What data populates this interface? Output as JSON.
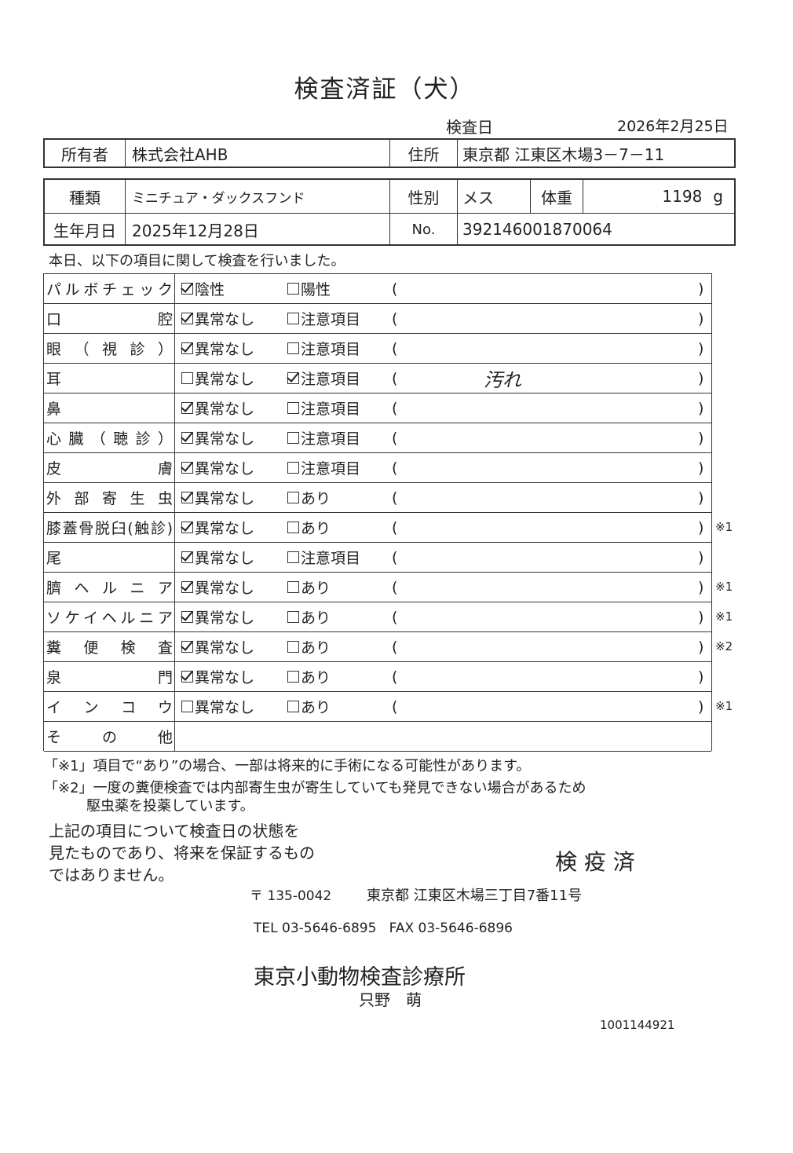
{
  "title": "検査済証（犬）",
  "inspection_date_label": "検査日",
  "inspection_date": "2026年2月25日",
  "owner": {
    "label": "所有者",
    "value": "株式会社AHB",
    "address_label": "住所",
    "address": "東京都 江東区木場3－7－11"
  },
  "pet": {
    "breed_label": "種類",
    "breed": "ミニチュア・ダックスフンド",
    "sex_label": "性別",
    "sex": "メス",
    "weight_label": "体重",
    "weight": "1198",
    "weight_unit": "g",
    "birth_label": "生年月日",
    "birth": "2025年12月28日",
    "no_label": "No.",
    "no": "392146001870064"
  },
  "intro": "本日、以下の項目に関して検査を行いました。",
  "rows": [
    {
      "label": "パルボチェック",
      "opt1": "陰性",
      "opt2": "陽性",
      "checked": 1,
      "note": "",
      "mark": ""
    },
    {
      "label": "口腔",
      "opt1": "異常なし",
      "opt2": "注意項目",
      "checked": 1,
      "note": "",
      "mark": ""
    },
    {
      "label": "眼（視診）",
      "opt1": "異常なし",
      "opt2": "注意項目",
      "checked": 1,
      "note": "",
      "mark": ""
    },
    {
      "label": "耳",
      "opt1": "異常なし",
      "opt2": "注意項目",
      "checked": 2,
      "note": "汚れ",
      "mark": ""
    },
    {
      "label": "鼻",
      "opt1": "異常なし",
      "opt2": "注意項目",
      "checked": 1,
      "note": "",
      "mark": ""
    },
    {
      "label": "心臓（聴診）",
      "opt1": "異常なし",
      "opt2": "注意項目",
      "checked": 1,
      "note": "",
      "mark": ""
    },
    {
      "label": "皮膚",
      "opt1": "異常なし",
      "opt2": "注意項目",
      "checked": 1,
      "note": "",
      "mark": ""
    },
    {
      "label": "外部寄生虫",
      "opt1": "異常なし",
      "opt2": "あり",
      "checked": 1,
      "note": "",
      "mark": ""
    },
    {
      "label": "膝蓋骨脱臼(触診)",
      "opt1": "異常なし",
      "opt2": "あり",
      "checked": 1,
      "note": "",
      "mark": "※1"
    },
    {
      "label": "尾",
      "opt1": "異常なし",
      "opt2": "注意項目",
      "checked": 1,
      "note": "",
      "mark": ""
    },
    {
      "label": "臍ヘルニア",
      "opt1": "異常なし",
      "opt2": "あり",
      "checked": 1,
      "note": "",
      "mark": "※1"
    },
    {
      "label": "ソケイヘルニア",
      "opt1": "異常なし",
      "opt2": "あり",
      "checked": 1,
      "note": "",
      "mark": "※1"
    },
    {
      "label": "糞便検査",
      "opt1": "異常なし",
      "opt2": "あり",
      "checked": 1,
      "note": "",
      "mark": "※2"
    },
    {
      "label": "泉門",
      "opt1": "異常なし",
      "opt2": "あり",
      "checked": 1,
      "note": "",
      "mark": ""
    },
    {
      "label": "インコウ",
      "opt1": "異常なし",
      "opt2": "あり",
      "checked": 0,
      "note": "",
      "mark": "※1"
    },
    {
      "label": "その他",
      "opt1": "",
      "opt2": "",
      "checked": 0,
      "note": "",
      "mark": ""
    }
  ],
  "paren_open": "(",
  "paren_close": ")",
  "footnote1": "「※1」項目で“あり”の場合、一部は将来的に手術になる可能性があります。",
  "footnote2a": "「※2」一度の糞便検査では内部寄生虫が寄生していても発見できない場合があるため",
  "footnote2b": "駆虫薬を投薬しています。",
  "disclaimer": [
    "上記の項目について検査日の状態を",
    "見たものであり、将来を保証するもの",
    "ではありません。"
  ],
  "stamp": "検 疫 済",
  "postal": "〒 135-0042",
  "address": "東京都 江東区木場三丁目7番11号",
  "phone": "TEL 03-5646-6895   FAX 03-5646-6896",
  "clinic": "東京小動物検査診療所",
  "vet": "只野　萌",
  "doc_id": "1001144921"
}
